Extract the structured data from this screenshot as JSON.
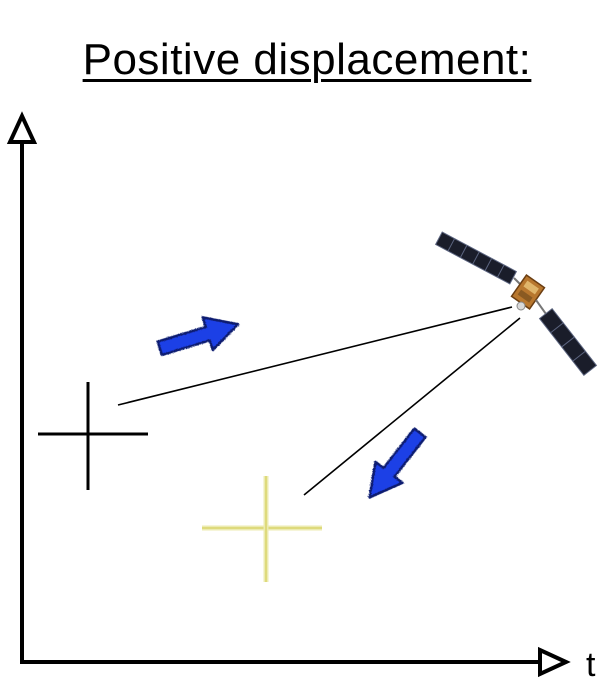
{
  "title": "Positive displacement:",
  "axes": {
    "x_label": "t",
    "y_label": ""
  },
  "colors": {
    "axis": "#000000",
    "initial_marker": "#000000",
    "displaced_marker": "#e7e48a",
    "arrow": "#1f3fe6",
    "line_of_sight": "#000000"
  },
  "icons": {
    "satellite": "satellite-icon",
    "arrow_right": "arrow-up-right-icon",
    "arrow_down": "arrow-down-left-icon"
  }
}
